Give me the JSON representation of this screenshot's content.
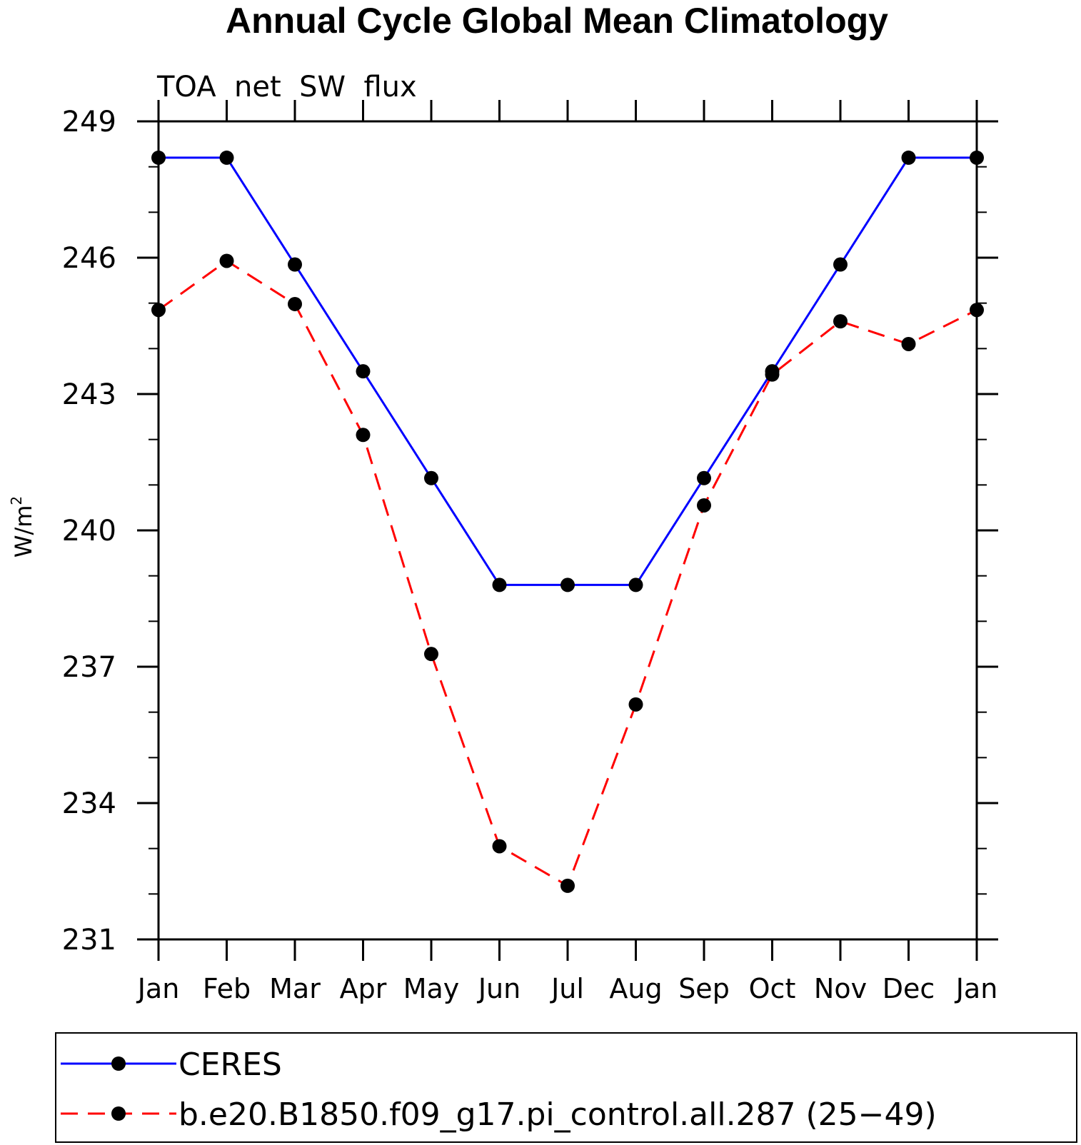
{
  "chart_data": {
    "type": "line",
    "title": "Annual Cycle Global Mean Climatology",
    "subtitle": "TOA  net  SW  flux",
    "ylabel": "W/m",
    "ylabel_sup": "2",
    "categories": [
      "Jan",
      "Feb",
      "Mar",
      "Apr",
      "May",
      "Jun",
      "Jul",
      "Aug",
      "Sep",
      "Oct",
      "Nov",
      "Dec",
      "Jan"
    ],
    "ylim": [
      231,
      249
    ],
    "yticks": [
      231,
      234,
      237,
      240,
      243,
      246,
      249
    ],
    "yminor_step": 1,
    "grid": false,
    "legend_position": "bottom",
    "series": [
      {
        "name": "CERES",
        "color": "#0000ff",
        "dash": "solid",
        "values": [
          248.2,
          248.2,
          245.85,
          243.5,
          241.15,
          238.8,
          238.8,
          238.8,
          241.15,
          243.5,
          245.85,
          248.2,
          248.2
        ]
      },
      {
        "name": "b.e20.B1850.f09_g17.pi_control.all.287 (25−49)",
        "color": "#ff0000",
        "dash": "dashed",
        "values": [
          244.85,
          245.93,
          244.98,
          242.1,
          237.28,
          233.05,
          232.18,
          236.17,
          240.55,
          243.43,
          244.6,
          244.1,
          244.85
        ]
      }
    ]
  }
}
